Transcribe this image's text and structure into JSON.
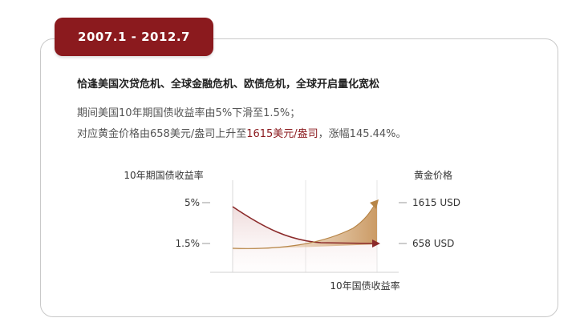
{
  "period": "2007.1 - 2012.7",
  "headline": "恰逢美国次贷危机、全球金融危机、欧债危机，全球开启量化宽松",
  "description": {
    "line1": "期间美国10年期国债收益率由5%下滑至1.5%；",
    "line2_prefix": "对应黄金价格由658美元/盎司上升至",
    "line2_highlight": "1615美元/盎司",
    "line2_suffix": "，涨幅145.44%。"
  },
  "colors": {
    "brand": "#8b1a1e",
    "gold": "#b8864b",
    "yield_line": "#8b2a2a"
  },
  "chart_data": {
    "type": "line",
    "x_label": "10年国债收益率",
    "left_axis": {
      "title": "10年期国债收益率",
      "ticks": [
        "5%",
        "1.5%"
      ]
    },
    "right_axis": {
      "title": "黄金价格",
      "ticks": [
        "1615 USD",
        "658 USD"
      ]
    },
    "series": [
      {
        "name": "10年期国债收益率",
        "start": 5,
        "end": 1.5,
        "unit": "%"
      },
      {
        "name": "黄金价格",
        "start": 658,
        "end": 1615,
        "unit": "USD"
      }
    ],
    "grid": true
  }
}
